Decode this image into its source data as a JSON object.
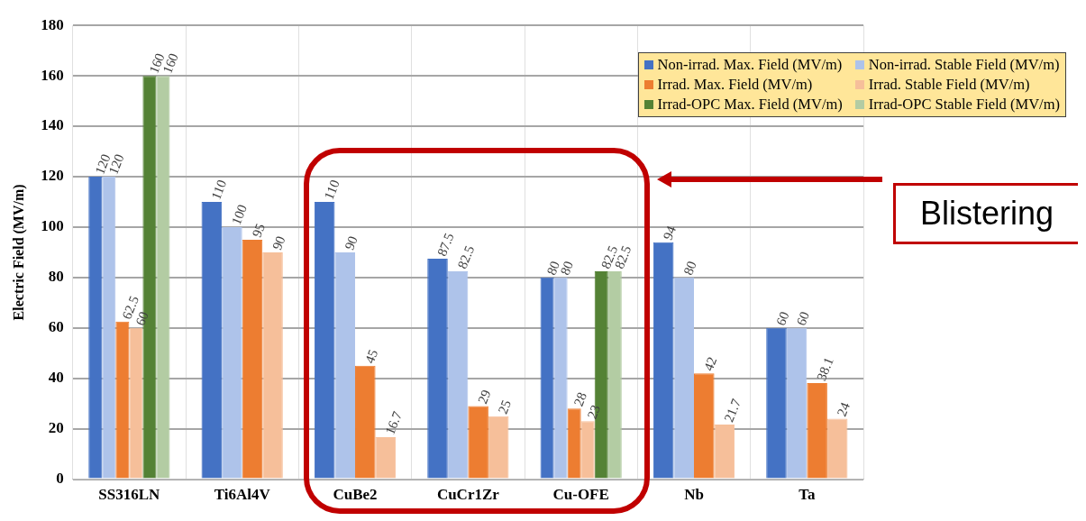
{
  "chart_data": {
    "type": "bar",
    "ylabel": "Electric Field (MV/m)",
    "categories": [
      "SS316LN",
      "Ti6Al4V",
      "CuBe2",
      "CuCr1Zr",
      "Cu-OFE",
      "Nb",
      "Ta"
    ],
    "series": [
      {
        "name": "Non-irrad. Max. Field (MV/m)",
        "color": "#4472c4",
        "values": [
          120,
          110,
          110,
          87.5,
          80,
          94,
          60
        ]
      },
      {
        "name": "Non-irrad. Stable Field (MV/m)",
        "color": "#aec3ea",
        "values": [
          120,
          100,
          90,
          82.5,
          80,
          80,
          60
        ]
      },
      {
        "name": "Irrad. Max. Field (MV/m)",
        "color": "#ed7d31",
        "values": [
          62.5,
          95,
          45,
          29,
          28,
          42,
          38.1
        ]
      },
      {
        "name": "Irrad. Stable Field (MV/m)",
        "color": "#f6bf9a",
        "values": [
          60,
          90,
          16.7,
          25,
          23,
          21.7,
          24
        ]
      },
      {
        "name": "Irrad-OPC Max. Field (MV/m)",
        "color": "#548235",
        "values": [
          160,
          null,
          null,
          null,
          82.5,
          null,
          null
        ]
      },
      {
        "name": "Irrad-OPC Stable Field (MV/m)",
        "color": "#b3cca3",
        "values": [
          160,
          null,
          null,
          null,
          82.5,
          null,
          null
        ]
      }
    ],
    "ylim": [
      0,
      180
    ],
    "yticks": [
      0,
      20,
      40,
      60,
      80,
      100,
      120,
      140,
      160,
      180
    ],
    "grid": true,
    "legend": "top right",
    "data_labels": true,
    "annotations": [
      "Blistering"
    ]
  }
}
